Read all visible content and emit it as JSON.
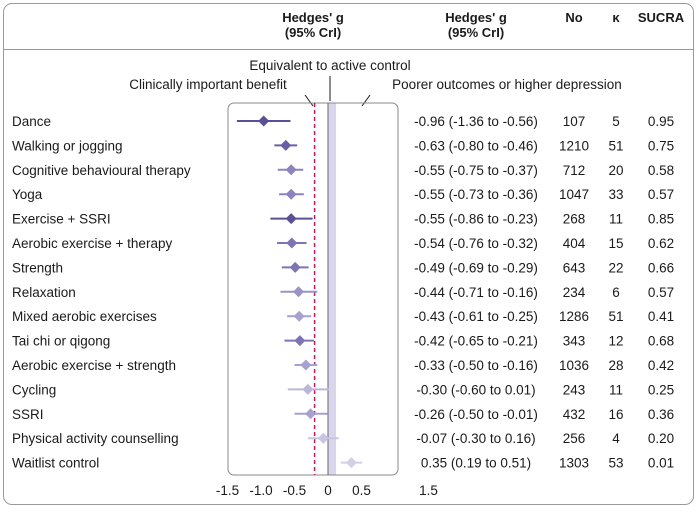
{
  "header": {
    "col_g": "Hedges' g",
    "col_g_sub": "(95% CrI)",
    "col_est": "Hedges' g",
    "col_est_sub": "(95% CrI)",
    "col_no": "No",
    "col_k": "κ",
    "col_sucra": "SUCRA"
  },
  "annotations": {
    "equivalent": "Equivalent to active control",
    "benefit": "Clinically important benefit",
    "poorer": "Poorer outcomes or higher depression"
  },
  "chart_data": {
    "type": "forest",
    "xlim": [
      -1.5,
      1.5
    ],
    "xticks": [
      "-1.5",
      "-1.0",
      "-0.5",
      "0",
      "0.5",
      "1.5"
    ],
    "xtick_values": [
      -1.5,
      -1.0,
      -0.5,
      0,
      0.5,
      1.5
    ],
    "reference_band": [
      0,
      0.12
    ],
    "null_line": 0,
    "benefit_threshold": -0.2,
    "rows": [
      {
        "label": "Dance",
        "g": -0.96,
        "lo": -1.36,
        "hi": -0.56,
        "ci_text": "-0.96 (-1.36 to -0.56)",
        "no": "107",
        "k": "5",
        "sucra": "0.95",
        "color": "#5b4f96"
      },
      {
        "label": "Walking or jogging",
        "g": -0.63,
        "lo": -0.8,
        "hi": -0.46,
        "ci_text": "-0.63 (-0.80 to -0.46)",
        "no": "1210",
        "k": "51",
        "sucra": "0.75",
        "color": "#6a5fa6"
      },
      {
        "label": "Cognitive behavioural therapy",
        "g": -0.55,
        "lo": -0.75,
        "hi": -0.37,
        "ci_text": "-0.55 (-0.75 to -0.37)",
        "no": "712",
        "k": "20",
        "sucra": "0.58",
        "color": "#8c84bd"
      },
      {
        "label": "Yoga",
        "g": -0.55,
        "lo": -0.73,
        "hi": -0.36,
        "ci_text": "-0.55 (-0.73 to -0.36)",
        "no": "1047",
        "k": "33",
        "sucra": "0.57",
        "color": "#8c84bd"
      },
      {
        "label": "Exercise + SSRI",
        "g": -0.55,
        "lo": -0.86,
        "hi": -0.23,
        "ci_text": "-0.55 (-0.86 to -0.23)",
        "no": "268",
        "k": "11",
        "sucra": "0.85",
        "color": "#5b4f96"
      },
      {
        "label": "Aerobic exercise + therapy",
        "g": -0.54,
        "lo": -0.76,
        "hi": -0.32,
        "ci_text": "-0.54 (-0.76 to -0.32)",
        "no": "404",
        "k": "15",
        "sucra": "0.62",
        "color": "#7d74b3"
      },
      {
        "label": "Strength",
        "g": -0.49,
        "lo": -0.69,
        "hi": -0.29,
        "ci_text": "-0.49 (-0.69 to -0.29)",
        "no": "643",
        "k": "22",
        "sucra": "0.66",
        "color": "#7d74b3"
      },
      {
        "label": "Relaxation",
        "g": -0.44,
        "lo": -0.71,
        "hi": -0.16,
        "ci_text": "-0.44 (-0.71 to -0.16)",
        "no": "234",
        "k": "6",
        "sucra": "0.57",
        "color": "#9a93c6"
      },
      {
        "label": "Mixed aerobic exercises",
        "g": -0.43,
        "lo": -0.61,
        "hi": -0.25,
        "ci_text": "-0.43 (-0.61 to -0.25)",
        "no": "1286",
        "k": "51",
        "sucra": "0.41",
        "color": "#a7a1cf"
      },
      {
        "label": "Tai chi or qigong",
        "g": -0.42,
        "lo": -0.65,
        "hi": -0.21,
        "ci_text": "-0.42 (-0.65 to -0.21)",
        "no": "343",
        "k": "12",
        "sucra": "0.68",
        "color": "#7d74b3"
      },
      {
        "label": "Aerobic exercise + strength",
        "g": -0.33,
        "lo": -0.5,
        "hi": -0.16,
        "ci_text": "-0.33 (-0.50 to -0.16)",
        "no": "1036",
        "k": "28",
        "sucra": "0.42",
        "color": "#a7a1cf"
      },
      {
        "label": "Cycling",
        "g": -0.3,
        "lo": -0.6,
        "hi": 0.01,
        "ci_text": "-0.30 (-0.60 to 0.01)",
        "no": "243",
        "k": "11",
        "sucra": "0.25",
        "color": "#bcb7da"
      },
      {
        "label": "SSRI",
        "g": -0.26,
        "lo": -0.5,
        "hi": -0.01,
        "ci_text": "-0.26 (-0.50 to -0.01)",
        "no": "432",
        "k": "16",
        "sucra": "0.36",
        "color": "#a7a1cf"
      },
      {
        "label": "Physical activity counselling",
        "g": -0.07,
        "lo": -0.3,
        "hi": 0.16,
        "ci_text": "-0.07 (-0.30 to 0.16)",
        "no": "256",
        "k": "4",
        "sucra": "0.20",
        "color": "#c9c5e1"
      },
      {
        "label": "Waitlist control",
        "g": 0.35,
        "lo": 0.19,
        "hi": 0.51,
        "ci_text": "0.35 (0.19 to 0.51)",
        "no": "1303",
        "k": "53",
        "sucra": "0.01",
        "color": "#d2cfe7"
      }
    ]
  },
  "colors": {
    "band": "#d8d5ec",
    "null_line": "#6a6a6a",
    "threshold": "#c2185b",
    "panel_border": "#8a8a8a"
  }
}
